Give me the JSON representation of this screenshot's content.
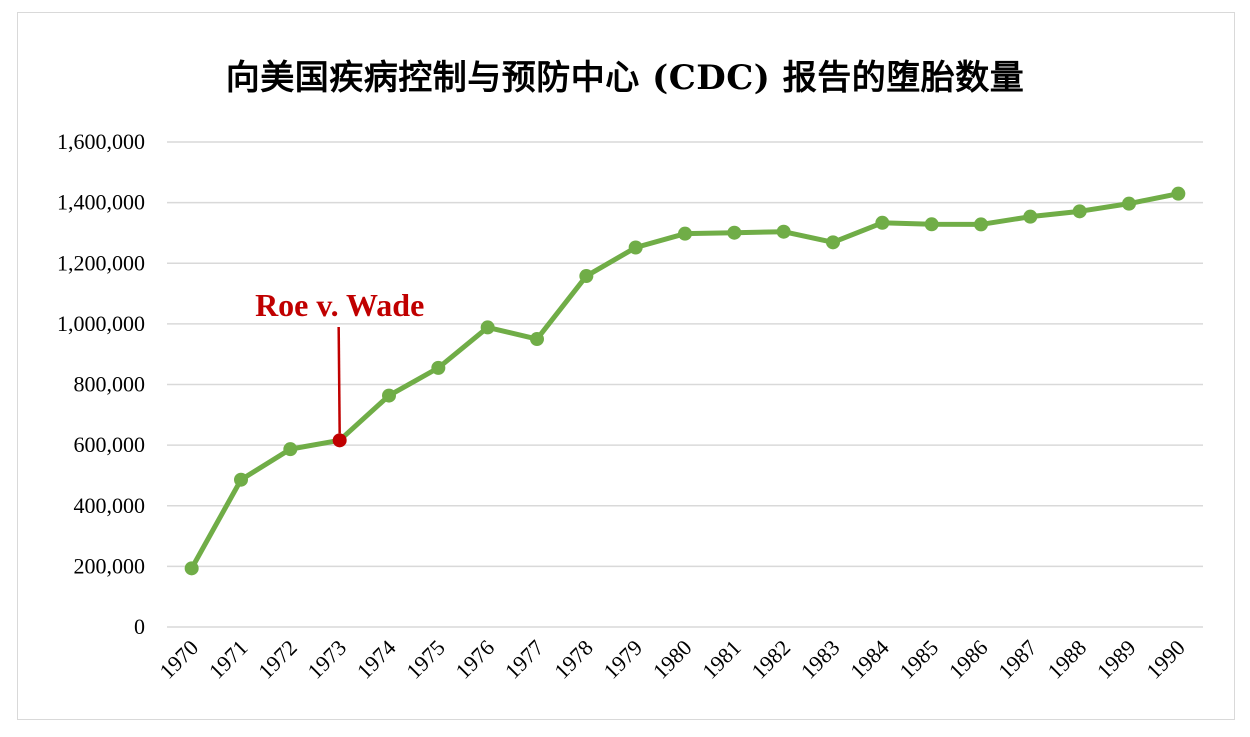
{
  "chart_data": {
    "type": "line",
    "title": "向美国疾病控制与预防中心 (CDC) 报告的堕胎数量",
    "xlabel": "",
    "ylabel": "",
    "categories": [
      "1970",
      "1971",
      "1972",
      "1973",
      "1974",
      "1975",
      "1976",
      "1977",
      "1978",
      "1979",
      "1980",
      "1981",
      "1982",
      "1983",
      "1984",
      "1985",
      "1986",
      "1987",
      "1988",
      "1989",
      "1990"
    ],
    "series": [
      {
        "values": [
          193491,
          485816,
          586760,
          615831,
          763476,
          854853,
          988267,
          949951,
          1157776,
          1251921,
          1297606,
          1300760,
          1303980,
          1268987,
          1333521,
          1328570,
          1328112,
          1353671,
          1371285,
          1396658,
          1429577
        ]
      }
    ],
    "ylim": [
      0,
      1600000
    ],
    "yticks": [
      "0",
      "200,000",
      "400,000",
      "600,000",
      "800,000",
      "1,000,000",
      "1,200,000",
      "1,400,000",
      "1,600,000"
    ],
    "grid": true,
    "legend": "none",
    "annotation": {
      "text": "Roe v. Wade",
      "category": "1973"
    },
    "colors": {
      "line": "#70ad47",
      "highlight": "#c00000",
      "grid": "#d9d9d9"
    }
  }
}
